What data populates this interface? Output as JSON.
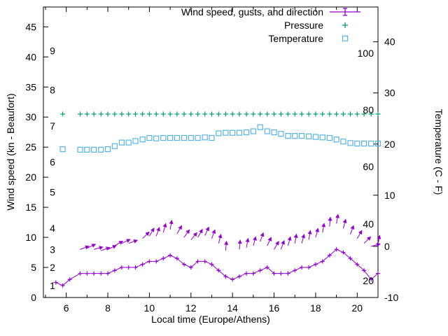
{
  "chart_data": {
    "type": "line",
    "title": "",
    "xlabel": "Local time (Europe/Athens)",
    "ylabel_left": "Wind speed (kn - Beaufort)",
    "ylabel_right": "Temperature (C - F)",
    "xlim": [
      4.9,
      21.0
    ],
    "ylim_left": [
      0,
      48.3
    ],
    "ylim_right": [
      -10,
      46.8
    ],
    "grid": false,
    "x_major_ticks": [
      6,
      8,
      10,
      12,
      14,
      16,
      18,
      20
    ],
    "x_minor_ticks": [
      5,
      7,
      9,
      11,
      13,
      15,
      17,
      19,
      21
    ],
    "y_left_ticks": [
      0,
      5,
      10,
      15,
      20,
      25,
      30,
      35,
      40,
      45
    ],
    "y_right_ticks": [
      -10,
      0,
      10,
      20,
      30,
      40
    ],
    "beaufort_labels": [
      {
        "label": "1",
        "kn": 2
      },
      {
        "label": "2",
        "kn": 5
      },
      {
        "label": "3",
        "kn": 8
      },
      {
        "label": "4",
        "kn": 11.5
      },
      {
        "label": "5",
        "kn": 17.5
      },
      {
        "label": "6",
        "kn": 22.5
      },
      {
        "label": "7",
        "kn": 28.5
      },
      {
        "label": "8",
        "kn": 34.5
      },
      {
        "label": "9",
        "kn": 41
      }
    ],
    "fahrenheit_labels": [
      {
        "label": "20",
        "c": -6.7
      },
      {
        "label": "40",
        "c": 4.4
      },
      {
        "label": "60",
        "c": 15.6
      },
      {
        "label": "80",
        "c": 26.7
      },
      {
        "label": "100",
        "c": 37.8
      }
    ],
    "legend": [
      {
        "id": "wind",
        "label": "Wind speed, gusts, and direction",
        "color": "#9400d3",
        "marker": "errorbar-line"
      },
      {
        "id": "pressure",
        "label": "Pressure",
        "color": "#009e73",
        "marker": "plus"
      },
      {
        "id": "temperature",
        "label": "Temperature",
        "color": "#56b4e9",
        "marker": "open-square"
      }
    ],
    "series": {
      "wind_speed": {
        "axis": "left",
        "color": "#9400d3",
        "marker": "plus",
        "x": [
          5.5,
          5.83,
          6.17,
          6.67,
          7,
          7.33,
          7.67,
          8,
          8.33,
          8.67,
          9,
          9.33,
          9.67,
          10,
          10.33,
          10.67,
          11,
          11.33,
          11.67,
          12,
          12.33,
          12.67,
          13,
          13.33,
          13.67,
          14,
          14.33,
          14.67,
          15,
          15.33,
          15.67,
          16,
          16.33,
          16.67,
          17,
          17.33,
          17.67,
          18,
          18.33,
          18.67,
          19,
          19.33,
          19.67,
          20,
          20.33,
          20.67,
          21
        ],
        "y": [
          2.5,
          2,
          3,
          4,
          4,
          4,
          4,
          4,
          4.5,
          5,
          5,
          5,
          5.5,
          6,
          6,
          6.5,
          7,
          6.5,
          5.5,
          5,
          6,
          6,
          5.5,
          4.5,
          3.5,
          3,
          3.5,
          4,
          4,
          4.5,
          5,
          4,
          4,
          4,
          4.5,
          5,
          5,
          5.5,
          6,
          7,
          8,
          7.5,
          6.5,
          5.5,
          4.5,
          3,
          4
        ]
      },
      "wind_direction": {
        "axis": "left",
        "color": "#9400d3",
        "x": [
          6.67,
          7,
          7.33,
          7.67,
          8,
          8.33,
          8.67,
          9,
          9.67,
          10,
          10.33,
          10.67,
          11,
          11.33,
          11.67,
          12,
          12.33,
          12.67,
          13,
          13.33,
          13.67,
          14.33,
          14.67,
          15,
          15.33,
          15.67,
          16,
          16.33,
          16.67,
          17,
          17.33,
          17.67,
          18,
          18.33,
          18.67,
          19,
          19.33,
          19.67,
          20,
          20.33,
          20.67,
          21
        ],
        "y": [
          8,
          8.2,
          8,
          7.8,
          8,
          8.6,
          9,
          9,
          9.8,
          10.2,
          10.2,
          10.8,
          11.3,
          10.6,
          10,
          9.6,
          10,
          10.3,
          9.8,
          9,
          7.8,
          8,
          8.3,
          8.6,
          9.3,
          8.6,
          8,
          8,
          8.6,
          9,
          9,
          9.6,
          10,
          10.8,
          11.8,
          12.3,
          11.5,
          10.5,
          9.8,
          9,
          8.5,
          8.8
        ],
        "angle_deg": [
          20,
          25,
          15,
          20,
          25,
          30,
          25,
          20,
          45,
          60,
          70,
          75,
          80,
          60,
          55,
          50,
          60,
          65,
          70,
          75,
          85,
          85,
          80,
          75,
          70,
          65,
          60,
          70,
          75,
          80,
          75,
          80,
          75,
          80,
          85,
          80,
          75,
          70,
          60,
          45,
          15,
          80
        ]
      },
      "pressure": {
        "axis": "left",
        "color": "#009e73",
        "marker": "plus",
        "x": [
          5.83,
          6.67,
          7,
          7.33,
          7.67,
          8,
          8.33,
          8.67,
          9,
          9.33,
          9.67,
          10,
          10.33,
          10.67,
          11,
          11.33,
          11.67,
          12,
          12.33,
          12.67,
          13,
          13.33,
          13.67,
          14,
          14.33,
          14.67,
          15,
          15.33,
          15.67,
          16,
          16.33,
          16.67,
          17,
          17.33,
          17.67,
          18,
          18.33,
          18.67,
          19,
          19.33,
          19.67,
          20,
          20.33,
          20.67,
          21
        ],
        "y_constant": 30.5
      },
      "temperature": {
        "axis": "right",
        "color": "#56b4e9",
        "marker": "open-square",
        "x": [
          5.83,
          6.67,
          7,
          7.33,
          7.67,
          8,
          8.33,
          8.67,
          9,
          9.33,
          9.67,
          10,
          10.33,
          10.67,
          11,
          11.33,
          11.67,
          12,
          12.33,
          12.67,
          13,
          13.33,
          13.67,
          14,
          14.33,
          14.67,
          15,
          15.33,
          15.67,
          16,
          16.33,
          16.67,
          17,
          17.33,
          17.67,
          18,
          18.33,
          18.67,
          19,
          19.33,
          19.67,
          20,
          20.33,
          20.67,
          21
        ],
        "y": [
          19,
          18.9,
          18.9,
          18.9,
          18.9,
          19,
          19.6,
          20.3,
          20.3,
          20.6,
          20.9,
          21.2,
          21.1,
          21.2,
          21.2,
          21.2,
          21.2,
          21.2,
          21.2,
          21.3,
          21.2,
          22.1,
          22.2,
          22.2,
          22.2,
          22.3,
          22.5,
          23.3,
          22.5,
          22.3,
          22,
          21.6,
          21.6,
          21.6,
          21.5,
          21.4,
          21.3,
          21.2,
          20.9,
          20.5,
          20.2,
          20.1,
          20.1,
          20.1,
          20.1
        ]
      }
    }
  }
}
